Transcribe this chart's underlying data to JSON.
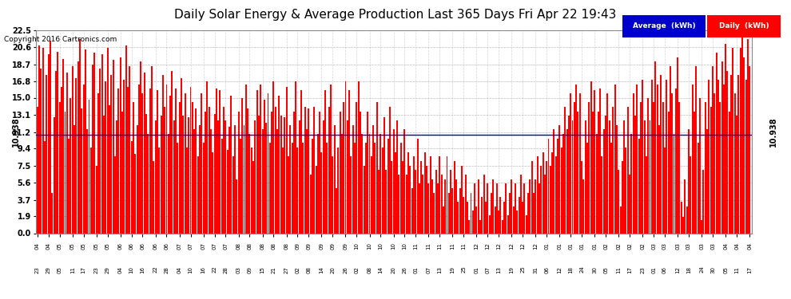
{
  "title": "Daily Solar Energy & Average Production Last 365 Days Fri Apr 22 19:43",
  "copyright": "Copyright 2016 Cartronics.com",
  "average_value": 10.938,
  "yticks": [
    0.0,
    1.9,
    3.7,
    5.6,
    7.5,
    9.4,
    11.2,
    13.1,
    15.0,
    16.8,
    18.7,
    20.6,
    22.5
  ],
  "ylim": [
    0.0,
    22.5
  ],
  "bar_color": "#FF0000",
  "average_line_color": "#0000BB",
  "background_color": "#FFFFFF",
  "plot_bg_color": "#FFFFFF",
  "grid_color": "#AAAAAA",
  "title_fontsize": 11,
  "bar_width": 0.85,
  "xtick_labels": [
    "04-23",
    "04-29",
    "05-05",
    "05-11",
    "05-17",
    "05-23",
    "05-29",
    "06-04",
    "06-10",
    "06-16",
    "06-22",
    "06-28",
    "07-04",
    "07-10",
    "07-16",
    "07-22",
    "07-28",
    "08-03",
    "08-09",
    "08-15",
    "08-21",
    "08-27",
    "09-02",
    "09-08",
    "09-14",
    "09-20",
    "09-26",
    "10-02",
    "10-08",
    "10-14",
    "10-20",
    "10-26",
    "11-01",
    "11-07",
    "11-13",
    "11-19",
    "11-25",
    "12-01",
    "12-07",
    "12-13",
    "12-19",
    "12-25",
    "12-31",
    "01-06",
    "01-12",
    "01-18",
    "01-24",
    "01-30",
    "02-05",
    "02-11",
    "02-17",
    "02-23",
    "03-01",
    "03-06",
    "03-12",
    "03-18",
    "03-24",
    "03-30",
    "04-05",
    "04-11",
    "04-17"
  ],
  "legend_avg_label": "Average  (kWh)",
  "legend_daily_label": "Daily  (kWh)",
  "legend_avg_bg": "#0000CC",
  "legend_daily_bg": "#FF0000",
  "daily_values": [
    14.0,
    20.8,
    18.2,
    20.5,
    10.2,
    17.5,
    19.8,
    21.3,
    4.5,
    12.8,
    18.0,
    20.1,
    14.5,
    16.2,
    19.3,
    13.5,
    17.8,
    10.5,
    15.0,
    18.5,
    12.0,
    17.2,
    19.0,
    21.5,
    13.8,
    16.5,
    20.3,
    11.5,
    14.8,
    9.5,
    18.7,
    20.0,
    7.5,
    15.5,
    18.2,
    19.8,
    13.0,
    16.8,
    20.5,
    14.2,
    17.5,
    19.2,
    8.5,
    12.5,
    16.0,
    19.5,
    13.5,
    17.0,
    20.8,
    16.2,
    18.5,
    10.2,
    14.5,
    8.8,
    12.0,
    16.5,
    19.0,
    15.5,
    17.8,
    13.2,
    11.0,
    16.0,
    18.5,
    8.0,
    12.5,
    15.8,
    9.5,
    13.0,
    17.5,
    14.0,
    16.5,
    11.0,
    15.2,
    18.0,
    12.5,
    16.0,
    10.0,
    14.5,
    17.2,
    13.0,
    15.5,
    9.5,
    12.8,
    16.2,
    14.5,
    11.5,
    13.8,
    8.5,
    12.0,
    15.5,
    10.0,
    13.5,
    16.8,
    14.0,
    11.5,
    9.0,
    13.2,
    16.0,
    12.5,
    15.8,
    10.5,
    14.0,
    12.5,
    9.2,
    11.8,
    15.2,
    8.5,
    12.0,
    6.0,
    13.5,
    10.5,
    15.0,
    12.0,
    16.5,
    13.8,
    11.0,
    9.5,
    8.0,
    12.5,
    15.8,
    13.0,
    16.5,
    11.5,
    14.8,
    12.2,
    15.5,
    10.0,
    13.5,
    16.8,
    14.0,
    11.5,
    15.2,
    13.0,
    9.5,
    12.8,
    16.2,
    8.5,
    12.0,
    10.0,
    13.5,
    16.8,
    9.5,
    12.5,
    15.8,
    10.0,
    14.0,
    11.5,
    13.8,
    6.5,
    10.5,
    14.0,
    7.5,
    11.0,
    13.5,
    9.0,
    12.5,
    15.8,
    10.0,
    14.0,
    16.5,
    8.5,
    12.0,
    5.0,
    9.5,
    13.5,
    11.0,
    14.5,
    16.8,
    12.5,
    15.8,
    8.5,
    12.0,
    10.0,
    14.5,
    16.8,
    13.5,
    11.0,
    7.5,
    10.0,
    13.5,
    11.0,
    8.5,
    12.0,
    10.0,
    14.5,
    7.0,
    11.0,
    9.5,
    12.8,
    7.0,
    10.5,
    14.0,
    8.0,
    11.5,
    9.0,
    12.5,
    6.5,
    10.0,
    8.0,
    11.5,
    6.5,
    9.0,
    7.5,
    5.0,
    8.5,
    7.0,
    10.5,
    5.5,
    8.0,
    6.5,
    9.0,
    7.5,
    5.5,
    8.5,
    6.0,
    4.5,
    7.0,
    5.5,
    8.5,
    6.5,
    3.0,
    6.0,
    8.5,
    4.5,
    7.0,
    5.0,
    8.0,
    6.0,
    3.5,
    5.0,
    7.5,
    4.0,
    6.5,
    3.5,
    1.5,
    4.5,
    2.5,
    5.5,
    3.0,
    6.0,
    1.5,
    4.0,
    6.5,
    3.5,
    5.5,
    2.0,
    4.5,
    6.0,
    3.0,
    5.5,
    2.5,
    4.0,
    1.5,
    3.5,
    5.5,
    2.0,
    4.5,
    6.0,
    3.0,
    5.5,
    2.5,
    4.0,
    6.5,
    3.5,
    5.5,
    2.0,
    4.5,
    6.0,
    8.0,
    4.5,
    6.0,
    8.5,
    5.5,
    7.5,
    9.0,
    6.5,
    8.0,
    10.5,
    7.5,
    9.0,
    11.5,
    8.5,
    10.5,
    12.0,
    9.5,
    11.0,
    14.0,
    11.5,
    13.0,
    15.5,
    12.5,
    14.5,
    16.5,
    13.5,
    15.5,
    8.0,
    6.0,
    12.5,
    10.0,
    14.5,
    16.8,
    13.5,
    15.8,
    11.0,
    13.5,
    16.0,
    8.5,
    11.5,
    13.0,
    15.5,
    12.5,
    10.0,
    14.0,
    16.5,
    12.0,
    7.0,
    3.0,
    8.0,
    12.5,
    9.5,
    14.0,
    6.5,
    11.0,
    15.5,
    13.0,
    16.5,
    10.5,
    14.5,
    17.0,
    12.5,
    8.5,
    15.0,
    12.5,
    17.0,
    14.5,
    19.0,
    16.5,
    12.0,
    17.5,
    14.5,
    9.5,
    17.0,
    13.5,
    18.5,
    15.5,
    11.0,
    16.0,
    19.5,
    14.5,
    3.5,
    1.8,
    6.0,
    3.0,
    11.5,
    8.5,
    16.5,
    13.5,
    18.5,
    10.0,
    15.0,
    1.5,
    7.0,
    14.5,
    11.5,
    17.0,
    14.0,
    18.5,
    15.5,
    20.0,
    17.0,
    14.5,
    19.0,
    16.5,
    21.0,
    18.0,
    13.5,
    17.5,
    20.5,
    15.5,
    13.0,
    17.5,
    20.5,
    22.5,
    19.5,
    17.0,
    21.5,
    18.5
  ]
}
